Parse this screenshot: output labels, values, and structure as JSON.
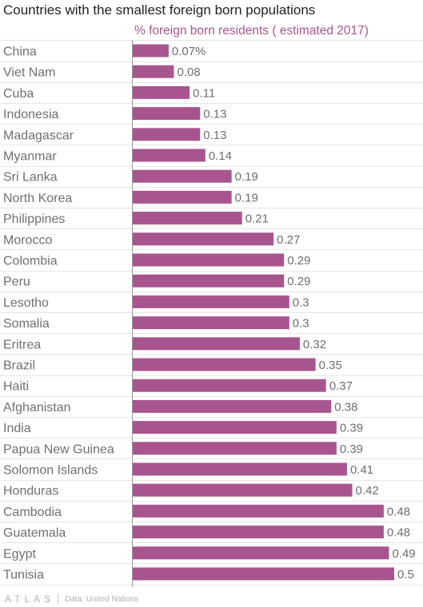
{
  "chart_data": {
    "type": "bar",
    "orientation": "horizontal",
    "title": "Countries with the smallest foreign born populations",
    "subtitle": "% foreign born residents ( estimated 2017)",
    "categories": [
      "China",
      "Viet Nam",
      "Cuba",
      "Indonesia",
      "Madagascar",
      "Myanmar",
      "Sri Lanka",
      "North Korea",
      "Philippines",
      "Morocco",
      "Colombia",
      "Peru",
      "Lesotho",
      "Somalia",
      "Eritrea",
      "Brazil",
      "Haiti",
      "Afghanistan",
      "India",
      "Papua New Guinea",
      "Solomon Islands",
      "Honduras",
      "Cambodia",
      "Guatemala",
      "Egypt",
      "Tunisia"
    ],
    "values": [
      0.07,
      0.08,
      0.11,
      0.13,
      0.13,
      0.14,
      0.19,
      0.19,
      0.21,
      0.27,
      0.29,
      0.29,
      0.3,
      0.3,
      0.32,
      0.35,
      0.37,
      0.38,
      0.39,
      0.39,
      0.41,
      0.42,
      0.48,
      0.48,
      0.49,
      0.5
    ],
    "value_labels": [
      "0.07%",
      "0.08",
      "0.11",
      "0.13",
      "0.13",
      "0.14",
      "0.19",
      "0.19",
      "0.21",
      "0.27",
      "0.29",
      "0.29",
      "0.3",
      "0.3",
      "0.32",
      "0.35",
      "0.37",
      "0.38",
      "0.39",
      "0.39",
      "0.41",
      "0.42",
      "0.48",
      "0.48",
      "0.49",
      "0.5"
    ],
    "xlim": [
      0,
      0.5
    ],
    "bar_color": "#a8558f",
    "grid": true,
    "legend": "none"
  },
  "footer": {
    "logo": "ATLAS",
    "source": "Data: United Nations"
  },
  "colors": {
    "bar": "#a8558f",
    "subtitle": "#a8558f",
    "category_text": "#707070",
    "value_text": "#6e6e6e",
    "grid": "#e6e6e6",
    "axis": "#999999"
  }
}
